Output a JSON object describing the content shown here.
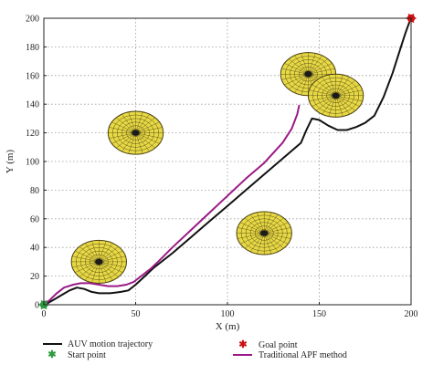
{
  "chart_data": {
    "type": "line",
    "xlabel": "X (m)",
    "ylabel": "Y (m)",
    "xlim": [
      0,
      200
    ],
    "ylim": [
      0,
      200
    ],
    "x_ticks": [
      0,
      50,
      100,
      150,
      200
    ],
    "y_ticks": [
      0,
      20,
      40,
      60,
      80,
      100,
      120,
      140,
      160,
      180,
      200
    ],
    "grid": true,
    "legend_position": "bottom",
    "series": [
      {
        "name": "AUV motion trajectory",
        "color": "#111111",
        "x": [
          0,
          2,
          6,
          10,
          14,
          18,
          22,
          26,
          30,
          36,
          42,
          46,
          50,
          55,
          60,
          70,
          80,
          90,
          100,
          110,
          120,
          130,
          140,
          143,
          146,
          150,
          155,
          160,
          165,
          170,
          175,
          180,
          185,
          190,
          195,
          197,
          199
        ],
        "y": [
          0,
          1,
          4,
          7,
          10,
          12,
          11,
          9,
          8,
          8,
          9,
          10,
          14,
          20,
          26,
          36,
          47,
          58,
          69,
          80,
          91,
          102,
          113,
          122,
          130,
          129,
          125,
          122,
          122,
          124,
          127,
          132,
          145,
          162,
          182,
          190,
          197
        ]
      },
      {
        "name": "Traditional APF method",
        "color": "#9b1a86",
        "x": [
          0,
          3,
          7,
          11,
          16,
          20,
          25,
          30,
          35,
          40,
          45,
          49,
          53,
          58,
          63,
          70,
          80,
          90,
          100,
          110,
          120,
          130,
          135,
          138,
          139
        ],
        "y": [
          0,
          3,
          8,
          12,
          14,
          15,
          15,
          14,
          13,
          13,
          14,
          16,
          20,
          25,
          31,
          40,
          52,
          64,
          76,
          88,
          99,
          113,
          123,
          133,
          139
        ]
      }
    ],
    "points": [
      {
        "name": "Start point",
        "x": 0,
        "y": 0,
        "color": "#2e9b3f"
      },
      {
        "name": "Goal point",
        "x": 200,
        "y": 200,
        "color": "#cc1111"
      }
    ],
    "obstacles": [
      {
        "cx": 30,
        "cy": 30,
        "r": 15
      },
      {
        "cx": 50,
        "cy": 120,
        "r": 15
      },
      {
        "cx": 120,
        "cy": 50,
        "r": 15
      },
      {
        "cx": 144,
        "cy": 161,
        "r": 15
      },
      {
        "cx": 159,
        "cy": 146,
        "r": 15
      }
    ],
    "obstacle_style": {
      "fill": "#e7d845",
      "line": "#4a4010",
      "center": "#1a1a1a"
    }
  }
}
